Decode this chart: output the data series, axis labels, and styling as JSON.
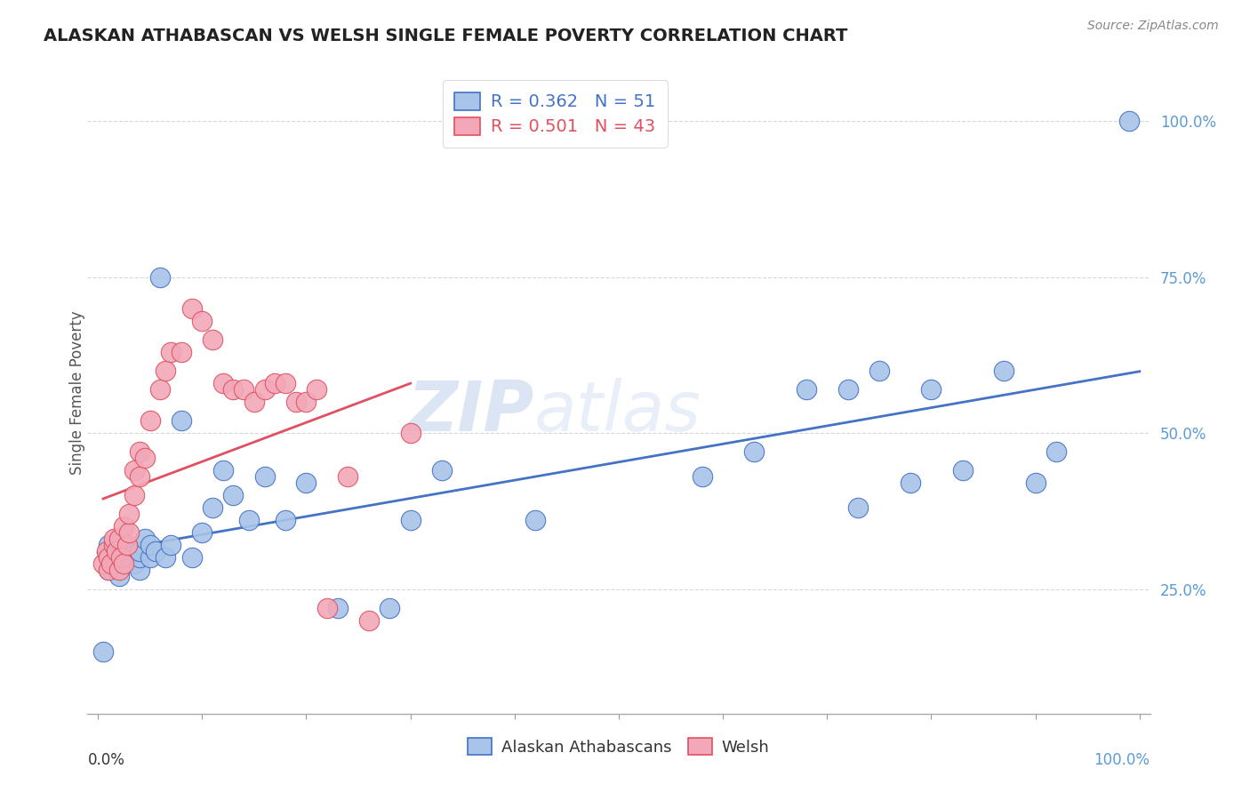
{
  "title": "ALASKAN ATHABASCAN VS WELSH SINGLE FEMALE POVERTY CORRELATION CHART",
  "source": "Source: ZipAtlas.com",
  "ylabel": "Single Female Poverty",
  "ytick_labels": [
    "25.0%",
    "50.0%",
    "75.0%",
    "100.0%"
  ],
  "ytick_values": [
    0.25,
    0.5,
    0.75,
    1.0
  ],
  "legend_blue": "R = 0.362   N = 51",
  "legend_pink": "R = 0.501   N = 43",
  "color_blue": "#A8C4E8",
  "color_pink": "#F2A8B8",
  "color_blue_line": "#4472C4",
  "color_pink_line": "#E05060",
  "watermark_zip": "ZIP",
  "watermark_atlas": "atlas",
  "background_color": "#FFFFFF",
  "grid_color": "#CCCCCC",
  "blue_scatter_x": [
    0.005,
    0.01,
    0.01,
    0.015,
    0.015,
    0.02,
    0.02,
    0.025,
    0.025,
    0.03,
    0.03,
    0.035,
    0.035,
    0.04,
    0.04,
    0.04,
    0.045,
    0.05,
    0.05,
    0.055,
    0.06,
    0.065,
    0.07,
    0.08,
    0.09,
    0.1,
    0.11,
    0.12,
    0.13,
    0.145,
    0.16,
    0.18,
    0.2,
    0.23,
    0.28,
    0.3,
    0.33,
    0.42,
    0.58,
    0.63,
    0.68,
    0.72,
    0.73,
    0.75,
    0.78,
    0.8,
    0.83,
    0.87,
    0.9,
    0.92,
    0.99
  ],
  "blue_scatter_y": [
    0.15,
    0.28,
    0.32,
    0.29,
    0.31,
    0.27,
    0.3,
    0.29,
    0.32,
    0.3,
    0.3,
    0.29,
    0.31,
    0.28,
    0.3,
    0.31,
    0.33,
    0.3,
    0.32,
    0.31,
    0.75,
    0.3,
    0.32,
    0.52,
    0.3,
    0.34,
    0.38,
    0.44,
    0.4,
    0.36,
    0.43,
    0.36,
    0.42,
    0.22,
    0.22,
    0.36,
    0.44,
    0.36,
    0.43,
    0.47,
    0.57,
    0.57,
    0.38,
    0.6,
    0.42,
    0.57,
    0.44,
    0.6,
    0.42,
    0.47,
    1.0
  ],
  "pink_scatter_x": [
    0.005,
    0.008,
    0.01,
    0.01,
    0.013,
    0.015,
    0.015,
    0.018,
    0.02,
    0.02,
    0.022,
    0.025,
    0.025,
    0.028,
    0.03,
    0.03,
    0.035,
    0.035,
    0.04,
    0.04,
    0.045,
    0.05,
    0.06,
    0.065,
    0.07,
    0.08,
    0.09,
    0.1,
    0.11,
    0.12,
    0.13,
    0.14,
    0.15,
    0.16,
    0.17,
    0.18,
    0.19,
    0.2,
    0.21,
    0.22,
    0.24,
    0.26,
    0.3
  ],
  "pink_scatter_y": [
    0.29,
    0.31,
    0.28,
    0.3,
    0.29,
    0.32,
    0.33,
    0.31,
    0.28,
    0.33,
    0.3,
    0.29,
    0.35,
    0.32,
    0.34,
    0.37,
    0.4,
    0.44,
    0.43,
    0.47,
    0.46,
    0.52,
    0.57,
    0.6,
    0.63,
    0.63,
    0.7,
    0.68,
    0.65,
    0.58,
    0.57,
    0.57,
    0.55,
    0.57,
    0.58,
    0.58,
    0.55,
    0.55,
    0.57,
    0.22,
    0.43,
    0.2,
    0.5
  ]
}
